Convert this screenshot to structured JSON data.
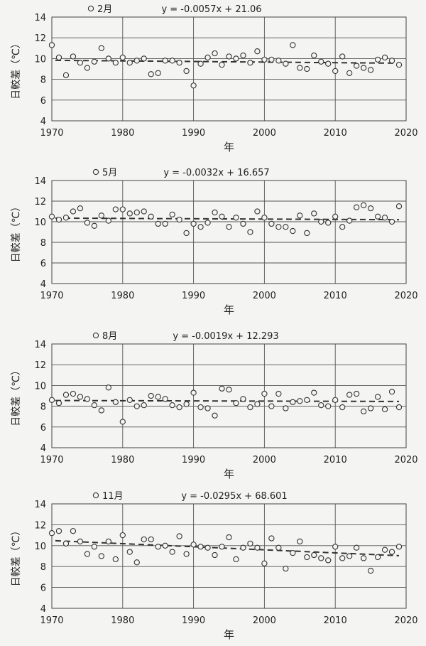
{
  "chart_data": [
    {
      "type": "scatter",
      "xlabel": "年",
      "ylabel": "日較差（℃）",
      "xlim": [
        1970,
        2020
      ],
      "ylim": [
        4,
        14
      ],
      "xticks": [
        "1970",
        "1980",
        "1990",
        "2000",
        "2010",
        "2020"
      ],
      "yticks": [
        "4",
        "6",
        "8",
        "10",
        "12",
        "14"
      ],
      "grid": true,
      "legend": "top-left",
      "series": [
        {
          "name": "2月",
          "x": [
            1970,
            1971,
            1972,
            1973,
            1974,
            1975,
            1976,
            1977,
            1978,
            1979,
            1980,
            1981,
            1982,
            1983,
            1984,
            1985,
            1986,
            1987,
            1988,
            1989,
            1990,
            1991,
            1992,
            1993,
            1994,
            1995,
            1996,
            1997,
            1998,
            1999,
            2000,
            2001,
            2002,
            2003,
            2004,
            2005,
            2006,
            2007,
            2008,
            2009,
            2010,
            2011,
            2012,
            2013,
            2014,
            2015,
            2016,
            2017,
            2018,
            2019
          ],
          "y": [
            11.3,
            10.1,
            8.4,
            10.2,
            9.6,
            9.1,
            9.7,
            11.0,
            10.0,
            9.6,
            10.1,
            9.6,
            9.8,
            10.0,
            8.5,
            8.6,
            9.8,
            9.8,
            9.6,
            8.8,
            7.4,
            9.5,
            10.1,
            10.5,
            9.4,
            10.2,
            10.0,
            10.3,
            9.6,
            10.7,
            9.9,
            9.9,
            9.8,
            9.5,
            11.3,
            9.1,
            9.0,
            10.3,
            9.7,
            9.5,
            8.8,
            10.2,
            8.6,
            9.3,
            9.1,
            8.9,
            9.9,
            10.1,
            9.8,
            9.4
          ]
        }
      ],
      "trendline": {
        "slope": -0.0057,
        "intercept": 21.06,
        "style": "dashed"
      },
      "annotations": [
        "y = -0.0057x + 21.06"
      ]
    },
    {
      "type": "scatter",
      "xlabel": "年",
      "ylabel": "日較差（℃）",
      "xlim": [
        1970,
        2020
      ],
      "ylim": [
        4,
        14
      ],
      "xticks": [
        "1970",
        "1980",
        "1990",
        "2000",
        "2010",
        "2020"
      ],
      "yticks": [
        "4",
        "6",
        "8",
        "10",
        "12",
        "14"
      ],
      "grid": true,
      "legend": "top-left",
      "series": [
        {
          "name": "5月",
          "x": [
            1970,
            1971,
            1972,
            1973,
            1974,
            1975,
            1976,
            1977,
            1978,
            1979,
            1980,
            1981,
            1982,
            1983,
            1984,
            1985,
            1986,
            1987,
            1988,
            1989,
            1990,
            1991,
            1992,
            1993,
            1994,
            1995,
            1996,
            1997,
            1998,
            1999,
            2000,
            2001,
            2002,
            2003,
            2004,
            2005,
            2006,
            2007,
            2008,
            2009,
            2010,
            2011,
            2012,
            2013,
            2014,
            2015,
            2016,
            2017,
            2018,
            2019
          ],
          "y": [
            10.5,
            10.2,
            10.4,
            11.0,
            11.3,
            9.9,
            9.6,
            10.6,
            10.1,
            11.2,
            11.2,
            10.8,
            10.9,
            11.0,
            10.5,
            9.8,
            9.8,
            10.7,
            10.2,
            8.9,
            9.8,
            9.5,
            9.9,
            10.9,
            10.5,
            9.5,
            10.4,
            9.8,
            9.0,
            11.0,
            10.4,
            9.8,
            9.5,
            9.5,
            9.1,
            10.6,
            8.9,
            10.8,
            10.0,
            9.9,
            10.5,
            9.5,
            10.1,
            11.4,
            11.6,
            11.3,
            10.5,
            10.4,
            10.0,
            11.5
          ]
        }
      ],
      "trendline": {
        "slope": -0.0032,
        "intercept": 16.657,
        "style": "dashed"
      },
      "annotations": [
        "y = -0.0032x + 16.657"
      ]
    },
    {
      "type": "scatter",
      "xlabel": "年",
      "ylabel": "日較差（℃）",
      "xlim": [
        1970,
        2020
      ],
      "ylim": [
        4,
        14
      ],
      "xticks": [
        "1970",
        "1980",
        "1990",
        "2000",
        "2010",
        "2020"
      ],
      "yticks": [
        "4",
        "6",
        "8",
        "10",
        "12",
        "14"
      ],
      "grid": true,
      "legend": "top-left",
      "series": [
        {
          "name": "8月",
          "x": [
            1970,
            1971,
            1972,
            1973,
            1974,
            1975,
            1976,
            1977,
            1978,
            1979,
            1980,
            1981,
            1982,
            1983,
            1984,
            1985,
            1986,
            1987,
            1988,
            1989,
            1990,
            1991,
            1992,
            1993,
            1994,
            1995,
            1996,
            1997,
            1998,
            1999,
            2000,
            2001,
            2002,
            2003,
            2004,
            2005,
            2006,
            2007,
            2008,
            2009,
            2010,
            2011,
            2012,
            2013,
            2014,
            2015,
            2016,
            2017,
            2018,
            2019
          ],
          "y": [
            8.6,
            8.3,
            9.1,
            9.2,
            8.9,
            8.7,
            8.1,
            7.6,
            9.8,
            8.4,
            6.5,
            8.6,
            8.0,
            8.1,
            9.0,
            8.9,
            8.7,
            8.1,
            7.9,
            8.2,
            9.3,
            7.9,
            7.8,
            7.1,
            9.7,
            9.6,
            8.3,
            8.7,
            7.9,
            8.2,
            9.2,
            8.0,
            9.2,
            7.8,
            8.4,
            8.5,
            8.6,
            9.3,
            8.1,
            8.0,
            8.6,
            7.9,
            9.1,
            9.2,
            7.5,
            7.8,
            8.9,
            7.7,
            9.4,
            7.9
          ]
        }
      ],
      "trendline": {
        "slope": -0.0019,
        "intercept": 12.293,
        "style": "dashed"
      },
      "annotations": [
        "y = -0.0019x + 12.293"
      ]
    },
    {
      "type": "scatter",
      "xlabel": "年",
      "ylabel": "日較差（℃）",
      "xlim": [
        1970,
        2020
      ],
      "ylim": [
        4,
        14
      ],
      "xticks": [
        "1970",
        "1980",
        "1990",
        "2000",
        "2010",
        "2020"
      ],
      "yticks": [
        "4",
        "6",
        "8",
        "10",
        "12",
        "14"
      ],
      "grid": true,
      "legend": "top-left",
      "series": [
        {
          "name": "11月",
          "x": [
            1970,
            1971,
            1972,
            1973,
            1974,
            1975,
            1976,
            1977,
            1978,
            1979,
            1980,
            1981,
            1982,
            1983,
            1984,
            1985,
            1986,
            1987,
            1988,
            1989,
            1990,
            1991,
            1992,
            1993,
            1994,
            1995,
            1996,
            1997,
            1998,
            1999,
            2000,
            2001,
            2002,
            2003,
            2004,
            2005,
            2006,
            2007,
            2008,
            2009,
            2010,
            2011,
            2012,
            2013,
            2014,
            2015,
            2016,
            2017,
            2018,
            2019
          ],
          "y": [
            11.2,
            11.4,
            10.2,
            11.4,
            10.4,
            9.2,
            9.9,
            9.0,
            10.4,
            8.7,
            11.0,
            9.4,
            8.4,
            10.6,
            10.6,
            9.9,
            10.0,
            9.4,
            10.9,
            9.2,
            10.1,
            9.9,
            9.8,
            9.1,
            9.9,
            10.8,
            8.7,
            9.8,
            10.2,
            9.8,
            8.3,
            10.7,
            9.8,
            7.8,
            9.3,
            10.4,
            8.9,
            9.1,
            8.8,
            8.6,
            9.9,
            8.8,
            9.0,
            9.8,
            8.8,
            7.6,
            8.9,
            9.6,
            9.4,
            9.9
          ]
        }
      ],
      "trendline": {
        "slope": -0.0295,
        "intercept": 68.601,
        "style": "dashed"
      },
      "annotations": [
        "y = -0.0295x + 68.601"
      ]
    }
  ]
}
